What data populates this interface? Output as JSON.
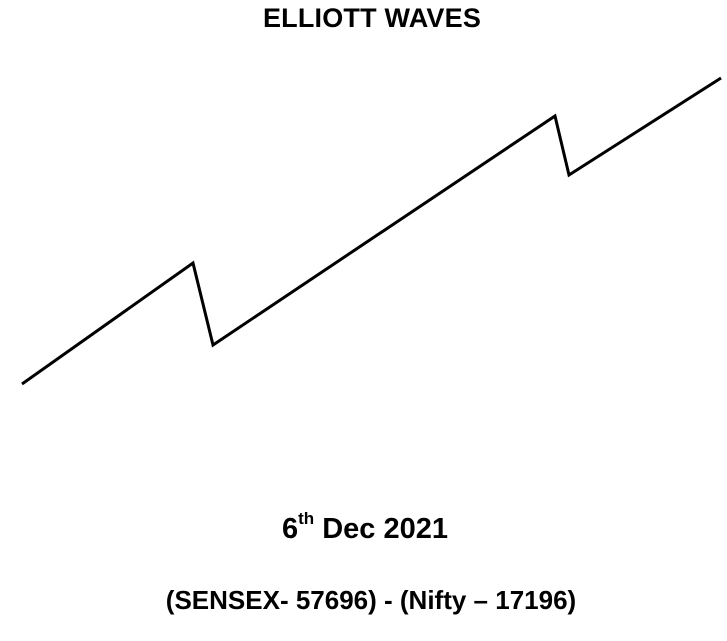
{
  "title": "ELLIOTT WAVES",
  "date": {
    "day": "6",
    "suffix": "th",
    "rest": "Dec 2021"
  },
  "indices": "(SENSEX- 57696) - (Nifty – 17196)",
  "colors": {
    "line": "#000000",
    "background": "#ffffff"
  }
}
